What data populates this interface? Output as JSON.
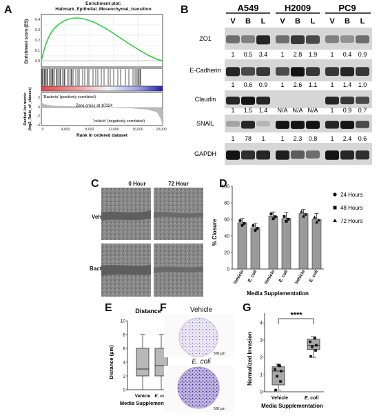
{
  "panel_labels": {
    "a": "A",
    "b": "B",
    "c": "C",
    "d": "D",
    "e": "E",
    "f": "F",
    "g": "G"
  },
  "panelA": {
    "title_line1": "Enrichment plot:",
    "title_line2": "Hallmark_Epithelial_Mesenchymal_transition",
    "es_ylabel": "Enrichment score (ES)",
    "es_yticks": [
      "0.4",
      "0.3",
      "0.2",
      "0.1",
      "0.0"
    ],
    "bacteria_label": "'Bacteria' (positively correlated)",
    "zero_cross": "Zero cross at 10324",
    "vehicle_label": "'vehicle' (negatively correlated)",
    "rank_ylabel_1": "Ranked list metric",
    "rank_ylabel_2": "(log2_Ratio_of_classes)",
    "rank_yticks": [
      "2",
      "0",
      "-2",
      "-4"
    ],
    "xticks": [
      "0",
      "4,000",
      "8,000",
      "12,000",
      "16,000",
      "20,000"
    ],
    "xlabel": "Rank in ordered dataset"
  },
  "panelB": {
    "cell_lines": [
      "A549",
      "H2009",
      "PC9"
    ],
    "lanes": [
      "V",
      "B",
      "L",
      "V",
      "B",
      "L",
      "V",
      "B",
      "L"
    ],
    "proteins": [
      {
        "name": "ZO1",
        "quant": [
          "1",
          "0.5",
          "3.4",
          "1",
          "2.8",
          "1.9",
          "1",
          "0.4",
          "0.9"
        ]
      },
      {
        "name": "E-Cadherin",
        "quant": [
          "1",
          "0.6",
          "0.9",
          "1",
          "2.6",
          "1.1",
          "1",
          "1.4",
          "1.0"
        ]
      },
      {
        "name": "Claudin",
        "quant": [
          "1",
          "1.5",
          "1.4",
          "N/A",
          "N/A",
          "N/A",
          "1",
          "0.9",
          "0.7"
        ]
      },
      {
        "name": "SNAIL",
        "quant": [
          "1",
          "78",
          "1",
          "1",
          "2.3",
          "0.8",
          "1",
          "2.4",
          "0.6"
        ]
      },
      {
        "name": "GAPDH",
        "quant": []
      }
    ]
  },
  "panelC": {
    "col_headers": [
      "0 Hour",
      "72 Hour"
    ],
    "row_labels": [
      "Vehicle",
      "Bacteria"
    ]
  },
  "panelD": {
    "ylabel": "% Closure",
    "yticks": [
      "0",
      "20",
      "40",
      "60",
      "80",
      "100"
    ],
    "xlabel": "Media   Supplementation",
    "legend": [
      "24 Hours",
      "48 Hours",
      "72 Hours"
    ],
    "chart_data": {
      "type": "bar",
      "categories": [
        "Vehicle",
        "E. coli",
        "Vehicle",
        "E. coli",
        "Vehicle",
        "E. coli"
      ],
      "groups": [
        "24 Hours",
        "48 Hours",
        "72 Hours"
      ],
      "values": [
        56,
        50,
        64,
        61,
        67,
        60
      ],
      "errors": [
        5,
        5,
        5,
        7,
        5,
        7
      ],
      "ylim": [
        0,
        100
      ]
    }
  },
  "panelE": {
    "title": "Distance",
    "ylabel": "Distance (µm)",
    "yticks": [
      "0",
      "2",
      "4",
      "6",
      "8",
      "10"
    ],
    "categories": [
      "Vehicle",
      "E. coli"
    ],
    "xlabel": "Media Supplementation",
    "chart_data": {
      "type": "box",
      "categories": [
        "Vehicle",
        "E. coli"
      ],
      "boxes": [
        {
          "min": 0,
          "q1": 2,
          "median": 3,
          "q3": 6,
          "max": 8
        },
        {
          "min": 0,
          "q1": 2,
          "median": 3.5,
          "q3": 6,
          "max": 8
        }
      ],
      "ylim": [
        0,
        10
      ]
    }
  },
  "panelF": {
    "labels": [
      "Vehicle",
      "E. coli"
    ],
    "scale": "500 µm"
  },
  "panelG": {
    "ylabel": "Normalized Invasion",
    "yticks": [
      "0",
      "1",
      "2",
      "3",
      "4"
    ],
    "categories": [
      "Vehicle",
      "E. coli"
    ],
    "xlabel": "Media  Supplementation",
    "significance": "****",
    "chart_data": {
      "type": "box",
      "categories": [
        "Vehicle",
        "E. coli"
      ],
      "boxes": [
        {
          "min": 0.1,
          "q1": 0.4,
          "median": 1.2,
          "q3": 1.45,
          "max": 1.6
        },
        {
          "min": 2.0,
          "q1": 2.45,
          "median": 2.7,
          "q3": 3.05,
          "max": 3.2
        }
      ],
      "points": [
        [
          0.1,
          0.6,
          0.9,
          1.2,
          1.3,
          1.5,
          1.55
        ],
        [
          2.05,
          2.4,
          2.6,
          2.7,
          2.9,
          3.1
        ]
      ],
      "ylim": [
        0,
        4
      ]
    }
  }
}
